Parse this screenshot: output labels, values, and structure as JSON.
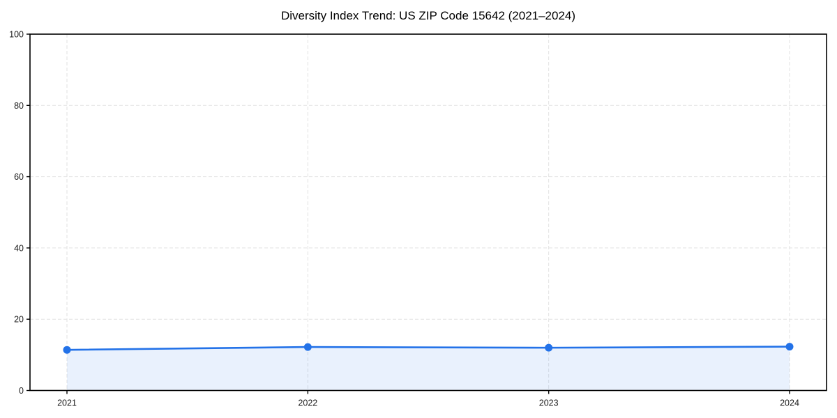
{
  "chart_data": {
    "type": "line",
    "title": "Diversity Index Trend: US ZIP Code 15642 (2021–2024)",
    "categories": [
      "2021",
      "2022",
      "2023",
      "2024"
    ],
    "series": [
      {
        "name": "Diversity Index",
        "values": [
          11.4,
          12.2,
          12.0,
          12.3
        ]
      }
    ],
    "xlabel": "",
    "ylabel": "",
    "ylim": [
      0,
      100
    ],
    "yticks": [
      0,
      20,
      40,
      60,
      80,
      100
    ],
    "grid": true,
    "grid_style": "dashed",
    "legend": "none",
    "area_fill": true,
    "marker": "circle",
    "colors": {
      "line": "#2372e8",
      "marker": "#2372e8",
      "area": "#2372e8",
      "grid": "#e2e2e2",
      "spine": "#000000",
      "tick_label": "#1a1a1a",
      "title": "#000000",
      "background": "#ffffff"
    },
    "area_opacity": 0.1
  }
}
